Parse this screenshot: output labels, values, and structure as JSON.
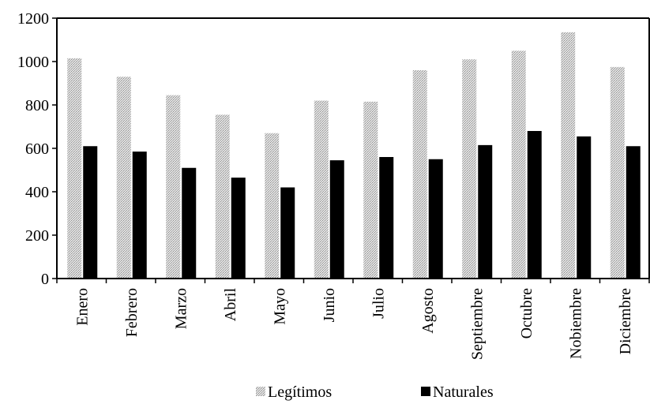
{
  "chart_data": {
    "type": "bar",
    "categories": [
      "Enero",
      "Febrero",
      "Marzo",
      "Abril",
      "Mayo",
      "Junio",
      "Julio",
      "Agosto",
      "Septiembre",
      "Octubre",
      "Nobiembre",
      "Diciembre"
    ],
    "series": [
      {
        "name": "Legítimos",
        "color": "#cfcfcf",
        "values": [
          1015,
          930,
          845,
          755,
          670,
          820,
          815,
          960,
          1010,
          1050,
          1135,
          975
        ]
      },
      {
        "name": "Naturales",
        "color": "#000000",
        "values": [
          610,
          585,
          510,
          465,
          420,
          545,
          560,
          550,
          615,
          680,
          655,
          610
        ]
      }
    ],
    "yticks": [
      "0",
      "200",
      "400",
      "600",
      "800",
      "1000",
      "1200"
    ],
    "ylim": [
      0,
      1200
    ],
    "legend_position": "bottom"
  }
}
